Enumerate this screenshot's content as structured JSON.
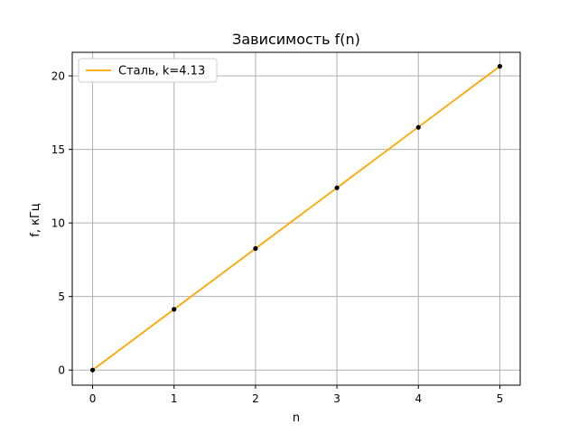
{
  "chart_data": {
    "type": "line",
    "title": "Зависимость f(n)",
    "xlabel": "n",
    "ylabel": "f, кГц",
    "xlim": [
      -0.25,
      5.25
    ],
    "ylim": [
      -1.03,
      21.6
    ],
    "x_ticks": [
      0,
      1,
      2,
      3,
      4,
      5
    ],
    "y_ticks": [
      0,
      5,
      10,
      15,
      20
    ],
    "x_tick_labels": [
      "0",
      "1",
      "2",
      "3",
      "4",
      "5"
    ],
    "y_tick_labels": [
      "0",
      "5",
      "10",
      "15",
      "20"
    ],
    "grid": true,
    "legend_position": "upper-left",
    "series": [
      {
        "name": "Сталь, k=4.13",
        "style": "line",
        "color": "#ffa500",
        "x": [
          0,
          1,
          2,
          3,
          4,
          5
        ],
        "values": [
          0,
          4.13,
          8.26,
          12.39,
          16.52,
          20.65
        ]
      },
      {
        "style": "points",
        "color": "#000000",
        "x": [
          0,
          1,
          2,
          3,
          4,
          5
        ],
        "values": [
          0,
          4.13,
          8.26,
          12.39,
          16.5,
          20.65
        ]
      }
    ]
  }
}
